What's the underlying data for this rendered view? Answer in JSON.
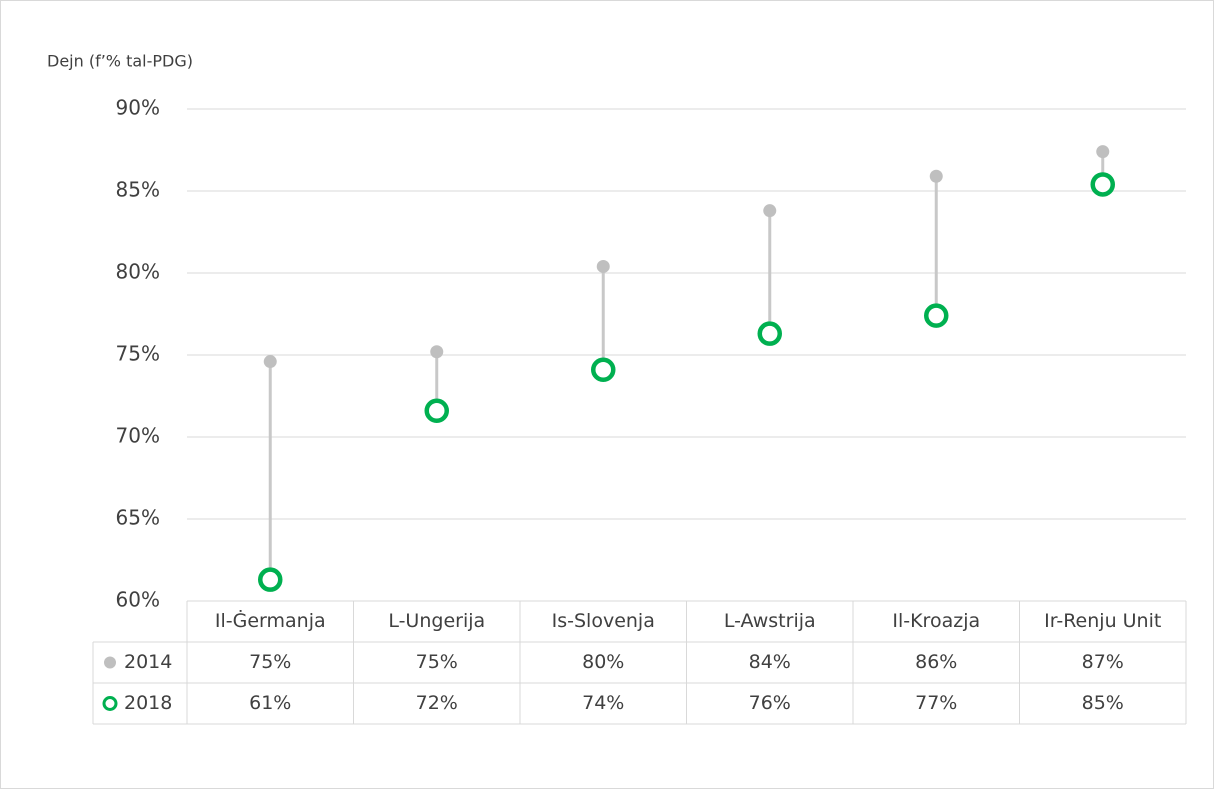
{
  "chart_data": {
    "type": "dumbbell",
    "y_axis_label": "Dejn (f’% tal-PDG)",
    "categories": [
      "Il-Ġermanja",
      "L-Ungerija",
      "Is-Slovenja",
      "L-Awstrija",
      "Il-Kroazja",
      "Ir-Renju Unit"
    ],
    "series": [
      {
        "name": "2014",
        "color": "#bfbfbf",
        "marker": "dot",
        "values": [
          74.6,
          75.2,
          80.4,
          83.8,
          85.9,
          87.4
        ],
        "value_labels": [
          "75%",
          "75%",
          "80%",
          "84%",
          "86%",
          "87%"
        ]
      },
      {
        "name": "2018",
        "color": "#00b050",
        "marker": "ring",
        "values": [
          61.3,
          71.6,
          74.1,
          76.3,
          77.4,
          85.4
        ],
        "value_labels": [
          "61%",
          "72%",
          "74%",
          "76%",
          "77%",
          "85%"
        ]
      }
    ],
    "ylim": [
      60,
      90
    ],
    "yticks": [
      {
        "value": 60,
        "label": "60%"
      },
      {
        "value": 65,
        "label": "65%"
      },
      {
        "value": 70,
        "label": "70%"
      },
      {
        "value": 75,
        "label": "75%"
      },
      {
        "value": 80,
        "label": "80%"
      },
      {
        "value": 85,
        "label": "85%"
      },
      {
        "value": 90,
        "label": "90%"
      }
    ],
    "grid": true,
    "data_table": true
  }
}
